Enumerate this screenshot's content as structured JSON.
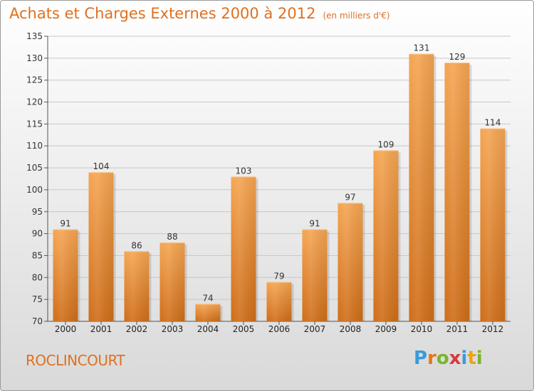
{
  "header": {
    "title": "Achats et Charges Externes 2000 à 2012",
    "unit": "(en milliers d'€)"
  },
  "footer": {
    "city": "ROCLINCOURT",
    "logo_text": "Proxiti"
  },
  "colors": {
    "accent": "#e07020",
    "bar_top": "#f5a552",
    "bar_bottom": "#d06f1a"
  },
  "chart_data": {
    "type": "bar",
    "title": "Achats et Charges Externes 2000 à 2012",
    "subtitle": "(en milliers d'€)",
    "xlabel": "",
    "ylabel": "",
    "categories": [
      "2000",
      "2001",
      "2002",
      "2003",
      "2004",
      "2005",
      "2006",
      "2007",
      "2008",
      "2009",
      "2010",
      "2011",
      "2012"
    ],
    "values": [
      91,
      104,
      86,
      88,
      74,
      103,
      79,
      91,
      97,
      109,
      131,
      129,
      114
    ],
    "ylim": [
      70,
      135
    ],
    "yticks": [
      70,
      75,
      80,
      85,
      90,
      95,
      100,
      105,
      110,
      115,
      120,
      125,
      130,
      135
    ],
    "grid": true,
    "data_labels": true
  }
}
